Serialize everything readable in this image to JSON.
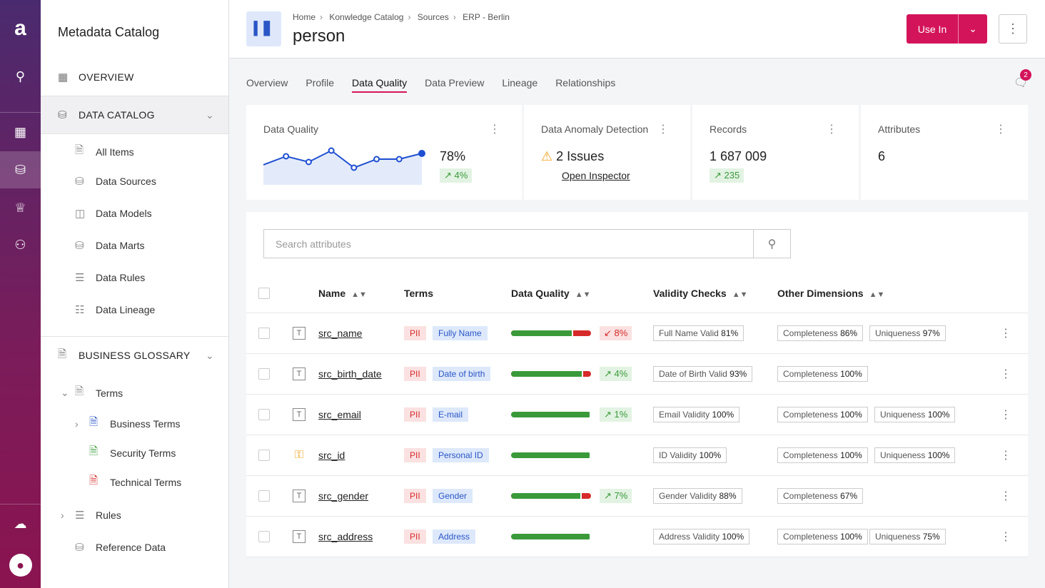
{
  "sidebar": {
    "title": "Metadata Catalog",
    "overview": "OVERVIEW",
    "data_catalog": "DATA CATALOG",
    "catalog_items": [
      "All Items",
      "Data Sources",
      "Data Models",
      "Data Marts",
      "Data Rules",
      "Data Lineage"
    ],
    "business_glossary": "BUSINESS GLOSSARY",
    "terms": "Terms",
    "term_items": [
      "Business Terms",
      "Security Terms",
      "Technical Terms"
    ],
    "rules": "Rules",
    "reference_data": "Reference Data"
  },
  "header": {
    "breadcrumbs": [
      "Home",
      "Konwledge Catalog",
      "Sources",
      "ERP - Berlin"
    ],
    "title": "person",
    "use_in": "Use In"
  },
  "tabs": [
    "Overview",
    "Profile",
    "Data Quality",
    "Data Preview",
    "Lineage",
    "Relationships"
  ],
  "active_tab": "Data Quality",
  "notifications": "2",
  "cards": {
    "dq": {
      "title": "Data Quality",
      "value": "78%",
      "delta": "4%",
      "trend": [
        74,
        77,
        75,
        79,
        73,
        76,
        76,
        78
      ]
    },
    "anomaly": {
      "title": "Data Anomaly Detection",
      "issues": "2 Issues",
      "link": "Open Inspector"
    },
    "records": {
      "title": "Records",
      "value": "1 687 009",
      "delta": "235"
    },
    "attributes": {
      "title": "Attributes",
      "value": "6"
    }
  },
  "search": {
    "placeholder": "Search attributes"
  },
  "columns": [
    "Name",
    "Terms",
    "Data Quality",
    "Validity Checks",
    "Other Dimensions"
  ],
  "rows": [
    {
      "name": "src_name",
      "icon": "text",
      "pii": "PII",
      "term": "Fully Name",
      "quality": 78,
      "delta": "8%",
      "delta_dir": "down",
      "validity": "Full Name Valid",
      "validity_val": "81%",
      "dims": [
        [
          "Completeness",
          "86%"
        ],
        [
          "Uniqueness",
          "97%"
        ]
      ]
    },
    {
      "name": "src_birth_date",
      "icon": "text",
      "pii": "PII",
      "term": "Date of birth",
      "quality": 90,
      "delta": "4%",
      "delta_dir": "up",
      "validity": "Date of Birth Valid",
      "validity_val": "93%",
      "dims": [
        [
          "Completeness",
          "100%"
        ]
      ]
    },
    {
      "name": "src_email",
      "icon": "text",
      "pii": "PII",
      "term": "E-mail",
      "quality": 100,
      "delta": "1%",
      "delta_dir": "up",
      "validity": "Email Validity",
      "validity_val": "100%",
      "dims": [
        [
          "Completeness",
          "100%"
        ],
        [
          "Uniqueness",
          "100%"
        ]
      ]
    },
    {
      "name": "src_id",
      "icon": "key",
      "pii": "PII",
      "term": "Personal ID",
      "quality": 100,
      "delta": null,
      "delta_dir": null,
      "validity": "ID Validity",
      "validity_val": "100%",
      "dims": [
        [
          "Completeness",
          "100%"
        ],
        [
          "Uniqueness",
          "100%"
        ]
      ]
    },
    {
      "name": "src_gender",
      "icon": "text",
      "pii": "PII",
      "term": "Gender",
      "quality": 88,
      "delta": "7%",
      "delta_dir": "up",
      "validity": "Gender Validity",
      "validity_val": "88%",
      "dims": [
        [
          "Completeness",
          "67%"
        ]
      ]
    },
    {
      "name": "src_address",
      "icon": "text",
      "pii": "PII",
      "term": "Address",
      "quality": 100,
      "delta": null,
      "delta_dir": null,
      "validity": "Address Validity",
      "validity_val": "100%",
      "dims": [
        [
          "Completeness",
          "100%"
        ],
        [
          "Uniqueness",
          "75%"
        ]
      ]
    }
  ]
}
